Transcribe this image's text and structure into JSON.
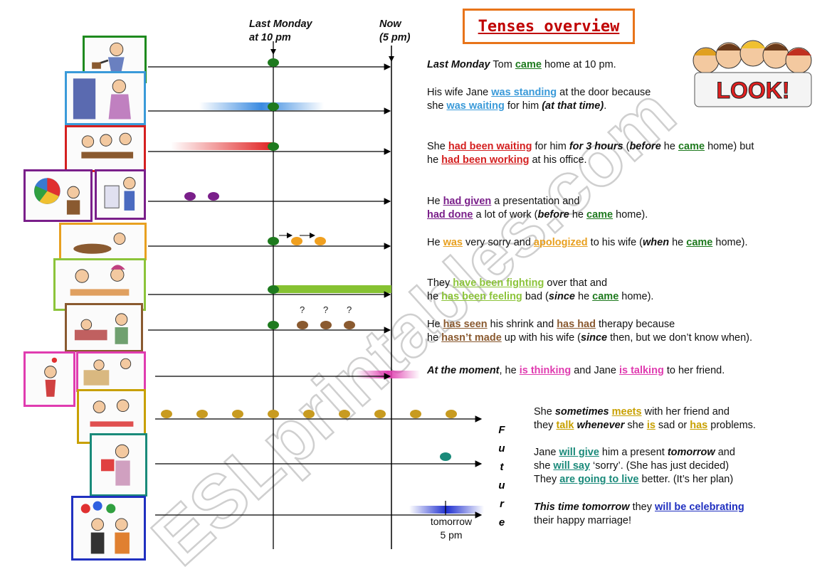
{
  "title": "Tenses overview",
  "headers": {
    "last_monday_line1": "Last Monday",
    "last_monday_line2": "at 10 pm",
    "now_line1": "Now",
    "now_line2": "(5 pm)"
  },
  "future_letters": [
    "F",
    "u",
    "t",
    "u",
    "r",
    "e"
  ],
  "tomorrow_label_line1": "tomorrow",
  "tomorrow_label_line2": "5 pm",
  "question_marks": [
    "?",
    "?",
    "?"
  ],
  "watermark": "ESLprintables.com",
  "look_sign": "LOOK!",
  "sentences": {
    "s1": {
      "a": "Last Monday",
      "b": " Tom ",
      "c": "came",
      "d": " home at 10 pm."
    },
    "s2": {
      "a": "His wife Jane ",
      "b": "was standing",
      "c": " at the door because",
      "d": "she ",
      "e": "was waiting",
      "f": " for him ",
      "g": "(at that time)",
      "h": "."
    },
    "s3": {
      "a": "She ",
      "b": "had been waiting",
      "c": " for him ",
      "d": "for 3 hours",
      "e": " (",
      "f": "before",
      "g": " he ",
      "h": "came",
      "i": " home) but",
      "j": "he ",
      "k": "had been working",
      "l": " at his office."
    },
    "s4": {
      "a": "He ",
      "b": "had given",
      "c": " a presentation and",
      "d": "had done",
      "e": " a lot of work (",
      "f": "before",
      "g": " he ",
      "h": "came",
      "i": " home)."
    },
    "s5": {
      "a": "He ",
      "b": "was",
      "c": " very sorry and ",
      "d": "apologized",
      "e": " to his wife (",
      "f": "when",
      "g": " he ",
      "h": "came",
      "i": " home)."
    },
    "s6": {
      "a": "They ",
      "b": "have been fighting",
      "c": " over that and",
      "d": "he ",
      "e": "has been feeling",
      "f": " bad (",
      "g": "since",
      "h": " he ",
      "i": "came",
      "j": " home)."
    },
    "s7": {
      "a": "He ",
      "b": "has seen",
      "c": " his shrink and ",
      "d": "has had",
      "e": " therapy because",
      "f": "he ",
      "g": "hasn’t made",
      "h": " up with his wife (",
      "i": "since",
      "j": " then, but we don’t know when)."
    },
    "s8": {
      "a": "At the moment",
      "b": ", he ",
      "c": "is thinking",
      "d": " and Jane ",
      "e": "is talking",
      "f": " to her friend."
    },
    "s9": {
      "a": "She ",
      "b": "sometimes",
      "c": " ",
      "d": "meets",
      "e": " with her friend and",
      "f": "they ",
      "g": "talk",
      "h": " ",
      "i": "whenever",
      "j": " she ",
      "k": "is",
      "l": " sad or ",
      "m": "has",
      "n": " problems."
    },
    "s10": {
      "a": "Jane ",
      "b": "will give",
      "c": " him a present ",
      "d": "tomorrow",
      "e": " and",
      "f": "she ",
      "g": "will say",
      "h": " ‘sorry’. (She has just decided)",
      "i": "They ",
      "j": "are going to live",
      "k": " better. (It’s her plan)"
    },
    "s11": {
      "a": "This time tomorrow",
      "b": " they ",
      "c": "will be celebrating",
      "d": "their happy marriage!"
    }
  },
  "colors": {
    "past_simple": "#1e7a1e",
    "past_continuous": "#3a9ad9",
    "past_perfect_continuous": "#d42020",
    "past_perfect": "#7a1f8a",
    "apology": "#e8a020",
    "present_perfect_continuous": "#8cc43a",
    "present_perfect": "#8a5a30",
    "present_continuous": "#e03cb0",
    "present_simple": "#c8a000",
    "future": "#1a8a7a",
    "future_continuous": "#2030c0"
  }
}
